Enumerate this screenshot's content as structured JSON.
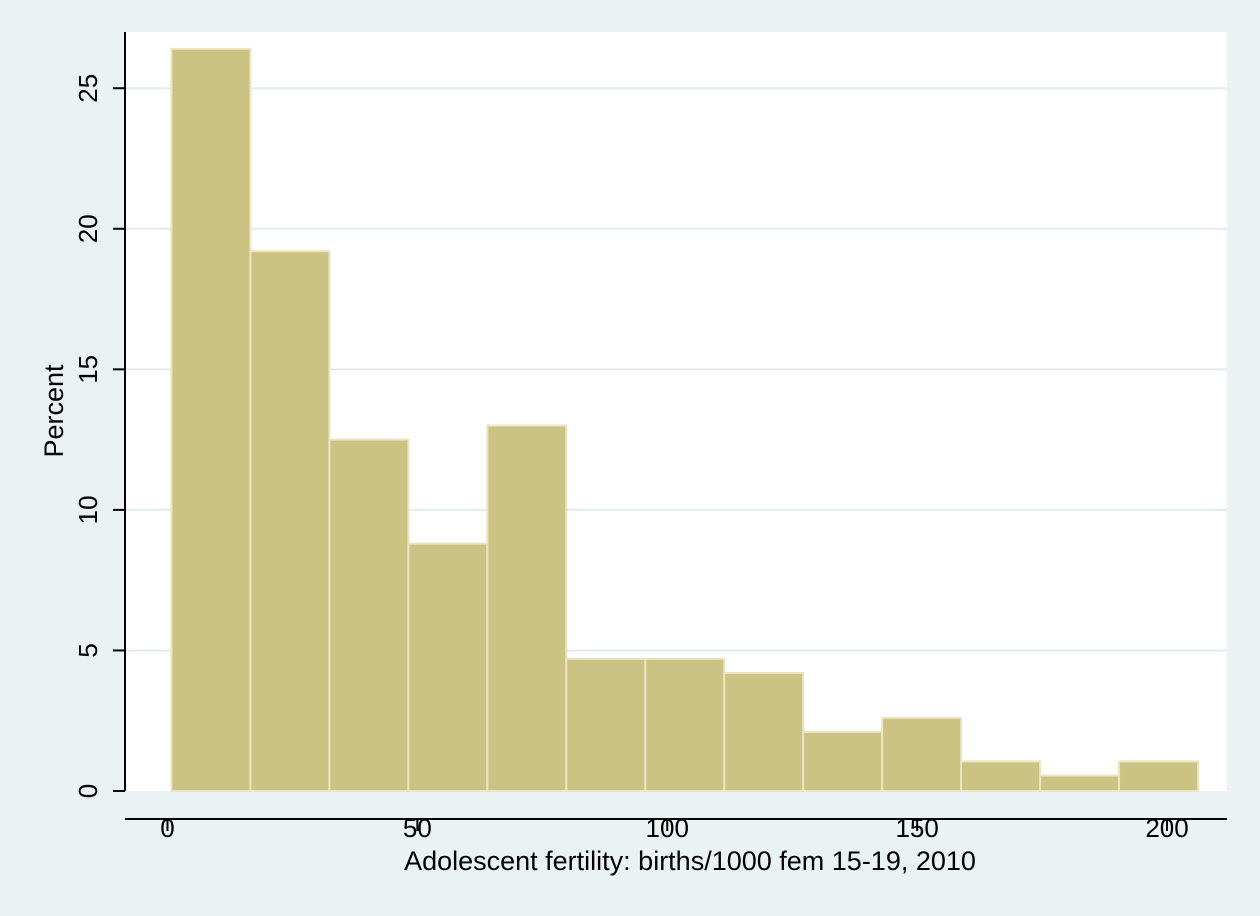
{
  "chart_data": {
    "type": "bar",
    "subtype": "histogram",
    "title": "",
    "xlabel": "Adolescent fertility: births/1000 fem 15-19, 2010",
    "ylabel": "Percent",
    "bin_edges": [
      0.8,
      16.6,
      32.4,
      48.2,
      64.0,
      79.8,
      95.6,
      111.4,
      127.2,
      143.0,
      158.8,
      174.6,
      190.4,
      206.2
    ],
    "values": [
      26.4,
      19.2,
      12.5,
      8.8,
      13.0,
      4.7,
      4.7,
      4.2,
      2.1,
      2.6,
      1.05,
      0.55,
      1.05
    ],
    "xlim": [
      -8.5,
      212
    ],
    "ylim": [
      0,
      27
    ],
    "x_ticks": [
      0,
      50,
      100,
      150,
      200
    ],
    "x_tick_labels": [
      "0",
      "50",
      "100",
      "150",
      "200"
    ],
    "y_ticks": [
      0,
      5,
      10,
      15,
      20,
      25
    ],
    "y_tick_labels": [
      "0",
      "5",
      "10",
      "15",
      "20",
      "25"
    ],
    "grid": true,
    "legend": "none"
  },
  "colors": {
    "background": "#eaf2f3",
    "plot_area": "#ffffff",
    "bar_fill": "#cbc283",
    "bar_edge": "#e9e4c2",
    "grid": "#e2ecee",
    "axis": "#000000"
  }
}
